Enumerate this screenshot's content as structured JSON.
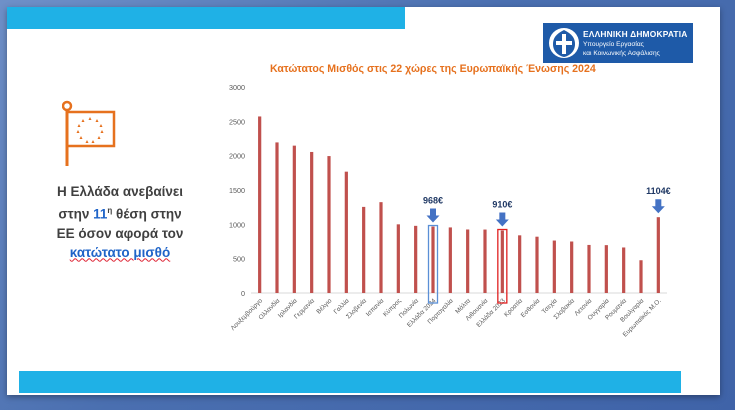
{
  "logo": {
    "title": "ΕΛΛΗΝΙΚΗ ΔΗΜΟΚΡΑΤΙΑ",
    "subtitle_line1": "Υπουργείο Εργασίας",
    "subtitle_line2": "και Κοινωνικής Ασφάλισης"
  },
  "headline": {
    "line1": "Η Ελλάδα ανεβαίνει",
    "line2_pre": "στην ",
    "line2_num": "11",
    "line2_sup": "η",
    "line2_post": " θέση στην",
    "line3": "ΕΕ όσον αφορά τον",
    "line4": "κατώτατο μισθό"
  },
  "colors": {
    "bar": "#c0504d",
    "accent_blue": "#1f64c8",
    "title_orange": "#e6711e",
    "bar_band": "#1fb1e6"
  },
  "chart_data": {
    "type": "bar",
    "title": "Κατώτατος Μισθός στις 22 χώρες της Ευρωπαϊκής Ένωσης 2024",
    "categories": [
      "Λουξεμβούργο",
      "Ολλανδία",
      "Ιρλανδία",
      "Γερμανία",
      "Βέλγιο",
      "Γαλλία",
      "Σλοβενία",
      "Ισπανία",
      "Κύπρος",
      "Πολωνία",
      "Ελλάδα 2024",
      "Πορτογαλία",
      "Μάλτα",
      "Λιθουανία",
      "Ελλάδα 2023",
      "Κροατία",
      "Εσθονία",
      "Τσεχία",
      "Σλοβακία",
      "Λετονία",
      "Ουγγαρία",
      "Ρουμανία",
      "Βουλγαρία",
      "Ευρωπαϊκός Μ.Ο."
    ],
    "values": [
      2571,
      2193,
      2146,
      2054,
      1994,
      1767,
      1254,
      1323,
      1000,
      978,
      968,
      955,
      925,
      924,
      910,
      840,
      820,
      764,
      750,
      700,
      697,
      663,
      477,
      1104
    ],
    "ylim": [
      0,
      3000
    ],
    "yticks": [
      0,
      500,
      1000,
      1500,
      2000,
      2500,
      3000
    ],
    "grid": false,
    "annotations": [
      {
        "category": "Ελλάδα 2024",
        "label": "968€",
        "highlight": "blue"
      },
      {
        "category": "Ελλάδα 2023",
        "label": "910€",
        "highlight": "red"
      },
      {
        "category": "Ευρωπαϊκός Μ.Ο.",
        "label": "1104€",
        "highlight": "none"
      }
    ]
  }
}
